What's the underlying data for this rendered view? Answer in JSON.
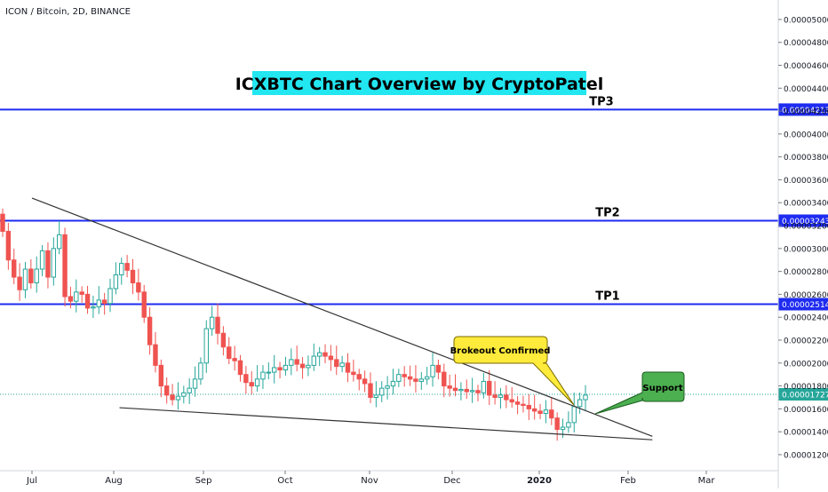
{
  "header": {
    "symbol": "ICON / Bitcoin, 2D, BINANCE"
  },
  "colors": {
    "up": "#26a69a",
    "down": "#ef5350",
    "level_line": "#1e2bf0",
    "trend_line": "#333333",
    "title_bg": "#22e6f0",
    "callout_yellow": "#ffeb3b",
    "callout_green": "#4caf50",
    "last_price": "#26a69a",
    "grid_tick": "#131722"
  },
  "chart_data": {
    "type": "candlestick",
    "title": "ICXBTC Chart Overview by CryptoPatel",
    "x_tick_labels": [
      "Jul",
      "Aug",
      "Sep",
      "Oct",
      "Nov",
      "Dec",
      "2020",
      "Feb",
      "Mar"
    ],
    "y_tick_labels": [
      "0.00005000",
      "0.00004800",
      "0.00004600",
      "0.00004400",
      "0.00004200",
      "0.00004000",
      "0.00003800",
      "0.00003600",
      "0.00003400",
      "0.00003200",
      "0.00003000",
      "0.00002800",
      "0.00002600",
      "0.00002400",
      "0.00002200",
      "0.00002000",
      "0.00001800",
      "0.00001600",
      "0.00001400",
      "0.00001200"
    ],
    "y_ticks": [
      5e-05,
      4.8e-05,
      4.6e-05,
      4.4e-05,
      4.2e-05,
      4e-05,
      3.8e-05,
      3.6e-05,
      3.4e-05,
      3.2e-05,
      3e-05,
      2.8e-05,
      2.6e-05,
      2.4e-05,
      2.2e-05,
      2e-05,
      1.8e-05,
      1.6e-05,
      1.4e-05,
      1.2e-05
    ],
    "ylim": [
      1.06e-05,
      5.17e-05
    ],
    "levels": [
      {
        "name": "TP3",
        "label": "TP3",
        "value": 4.213e-05,
        "price_label": "0.00004213"
      },
      {
        "name": "TP2",
        "label": "TP2",
        "value": 3.243e-05,
        "price_label": "0.00003243"
      },
      {
        "name": "TP1",
        "label": "TP1",
        "value": 2.514e-05,
        "price_label": "0.00002514"
      }
    ],
    "last_price": {
      "value": 1.727e-05,
      "label": "0.00001727"
    },
    "annotations": {
      "breakout": "Brokeout Confirmed",
      "support": "Support"
    },
    "trendlines": [
      {
        "from": {
          "date": "2019-07-01",
          "value": 3.44e-05
        },
        "to": {
          "date": "2020-02-10",
          "value": 1.36e-05
        }
      },
      {
        "from": {
          "date": "2019-08-03",
          "value": 1.61e-05
        },
        "to": {
          "date": "2020-02-10",
          "value": 1.33e-05
        }
      }
    ],
    "candles_close": [
      3.15e-05,
      2.9e-05,
      2.75e-05,
      2.64e-05,
      2.82e-05,
      2.7e-05,
      2.82e-05,
      2.98e-05,
      2.75e-05,
      3e-05,
      3.12e-05,
      2.58e-05,
      2.54e-05,
      2.62e-05,
      2.6e-05,
      2.48e-05,
      2.49e-05,
      2.55e-05,
      2.52e-05,
      2.65e-05,
      2.77e-05,
      2.87e-05,
      2.81e-05,
      2.7e-05,
      2.62e-05,
      2.4e-05,
      2.16e-05,
      1.98e-05,
      1.8e-05,
      1.72e-05,
      1.68e-05,
      1.71e-05,
      1.74e-05,
      1.78e-05,
      1.86e-05,
      2e-05,
      2.3e-05,
      2.4e-05,
      2.26e-05,
      2.14e-05,
      2.04e-05,
      2.02e-05,
      1.9e-05,
      1.83e-05,
      1.8e-05,
      1.86e-05,
      1.92e-05,
      1.92e-05,
      1.96e-05,
      1.94e-05,
      1.98e-05,
      2.03e-05,
      1.99e-05,
      1.96e-05,
      1.98e-05,
      2.06e-05,
      2.09e-05,
      2.06e-05,
      2.03e-05,
      1.97e-05,
      2e-05,
      1.92e-05,
      1.9e-05,
      1.86e-05,
      1.82e-05,
      1.7e-05,
      1.72e-05,
      1.78e-05,
      1.8e-05,
      1.84e-05,
      1.9e-05,
      1.88e-05,
      1.86e-05,
      1.84e-05,
      1.86e-05,
      1.88e-05,
      1.98e-05,
      1.92e-05,
      1.8e-05,
      1.78e-05,
      1.76e-05,
      1.77e-05,
      1.75e-05,
      1.76e-05,
      1.74e-05,
      1.84e-05,
      1.72e-05,
      1.7e-05,
      1.72e-05,
      1.68e-05,
      1.66e-05,
      1.64e-05,
      1.63e-05,
      1.6e-05,
      1.58e-05,
      1.56e-05,
      1.59e-05,
      1.52e-05,
      1.42e-05,
      1.44e-05,
      1.48e-05,
      1.62e-05,
      1.68e-05,
      1.72e-05
    ]
  }
}
